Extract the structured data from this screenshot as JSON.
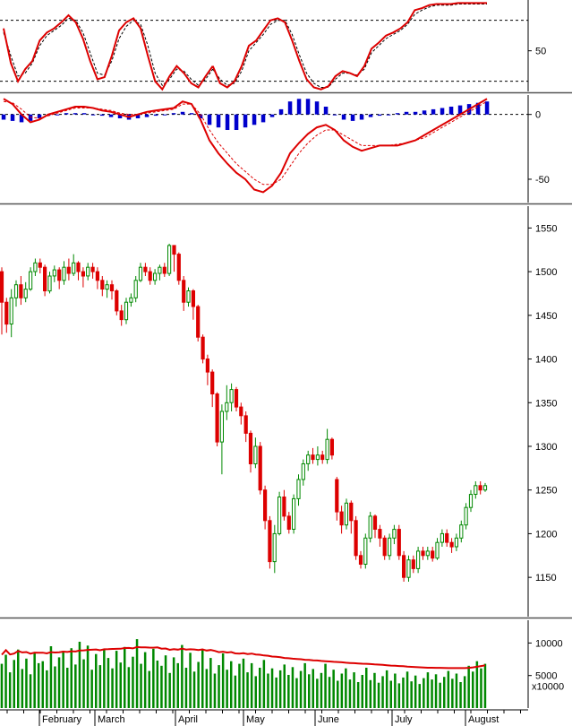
{
  "chart_data": [
    {
      "type": "line",
      "panel": "stochastic",
      "y_ticks": [
        50
      ],
      "ylim": [
        10,
        100
      ],
      "reference_lines": [
        80,
        20
      ],
      "x": [
        0,
        5,
        10,
        15,
        20,
        25,
        30,
        35,
        40,
        45,
        50,
        55,
        60,
        65,
        70,
        75,
        80,
        85,
        90,
        95,
        100,
        105,
        110,
        115,
        120,
        125,
        130,
        135,
        140,
        145
      ],
      "series": [
        {
          "color": "#dd0000",
          "values": [
            72,
            38,
            20,
            32,
            40,
            60,
            68,
            72,
            78,
            85,
            78,
            62,
            40,
            22,
            24,
            45,
            70,
            78,
            82,
            72,
            45,
            20,
            12,
            25,
            35,
            28,
            18,
            14,
            25,
            35
          ]
        },
        {
          "color": "#000000",
          "values": [
            68,
            45,
            25,
            28,
            38,
            55,
            65,
            70,
            75,
            82,
            80,
            68,
            48,
            28,
            26,
            40,
            62,
            74,
            80,
            76,
            55,
            28,
            16,
            22,
            32,
            30,
            22,
            16,
            22,
            32
          ]
        }
      ],
      "series_b_x": [
        145,
        150,
        155,
        160,
        165,
        170,
        175,
        180,
        185,
        190,
        195,
        200,
        205,
        210,
        215,
        220,
        225,
        230,
        235,
        240,
        245,
        250,
        255,
        260,
        265,
        270,
        275,
        280,
        285,
        290,
        295,
        300,
        305,
        310,
        315,
        320,
        325,
        330,
        335
      ],
      "series_b": [
        {
          "color": "#dd0000",
          "values": [
            35,
            18,
            14,
            20,
            35,
            55,
            60,
            70,
            80,
            82,
            78,
            60,
            40,
            22,
            14,
            12,
            15,
            25,
            30,
            28,
            25,
            35,
            52,
            58,
            65,
            68,
            72,
            78,
            90,
            92,
            95,
            96,
            96,
            96,
            97,
            97,
            97,
            97,
            97
          ]
        },
        {
          "color": "#000000",
          "values": [
            32,
            22,
            16,
            18,
            30,
            50,
            58,
            66,
            76,
            80,
            80,
            66,
            46,
            28,
            18,
            14,
            14,
            22,
            28,
            28,
            26,
            32,
            48,
            55,
            62,
            66,
            70,
            76,
            86,
            90,
            93,
            95,
            95,
            95,
            96,
            96,
            96,
            96,
            96
          ]
        }
      ]
    },
    {
      "type": "line",
      "panel": "macd",
      "y_ticks": [
        0,
        -50
      ],
      "ylim": [
        -68,
        15
      ],
      "lines": [
        {
          "color": "#dd0000",
          "values": [
            12,
            8,
            0,
            -6,
            -4,
            0,
            2,
            4,
            6,
            6,
            5,
            3,
            2,
            0,
            -2,
            0,
            2,
            3,
            4,
            5,
            10,
            8,
            -4,
            -20,
            -30,
            -38,
            -45,
            -50,
            -58,
            -60,
            -55,
            -45,
            -30,
            -22,
            -15,
            -10,
            -8,
            -12,
            -20,
            -25,
            -28,
            -26,
            -24,
            -24,
            -24,
            -22,
            -20,
            -16,
            -12,
            -8,
            -4,
            0,
            4,
            8,
            12
          ]
        },
        {
          "color": "#dd0000",
          "dashed": true,
          "values": [
            10,
            9,
            4,
            -2,
            -3,
            -1,
            1,
            3,
            5,
            5,
            5,
            4,
            3,
            1,
            0,
            0,
            1,
            2,
            3,
            4,
            8,
            8,
            0,
            -12,
            -22,
            -30,
            -38,
            -44,
            -50,
            -54,
            -54,
            -50,
            -40,
            -30,
            -22,
            -16,
            -12,
            -12,
            -16,
            -20,
            -24,
            -24,
            -24,
            -24,
            -23,
            -22,
            -20,
            -18,
            -14,
            -10,
            -6,
            -2,
            2,
            6,
            10
          ]
        }
      ],
      "histogram": [
        -4,
        -5,
        -6,
        -5,
        -3,
        -1,
        0,
        1,
        1,
        1,
        0,
        -1,
        -2,
        -3,
        -4,
        -3,
        -2,
        -1,
        0,
        1,
        2,
        1,
        -3,
        -8,
        -10,
        -12,
        -12,
        -10,
        -8,
        -6,
        -2,
        4,
        10,
        12,
        12,
        10,
        6,
        0,
        -4,
        -5,
        -4,
        -2,
        -1,
        0,
        1,
        2,
        2,
        3,
        4,
        5,
        6,
        7,
        8,
        9,
        10
      ],
      "hist_color": "#0000cc"
    },
    {
      "type": "candlestick",
      "panel": "price",
      "y_ticks": [
        1550,
        1500,
        1450,
        1400,
        1350,
        1300,
        1250,
        1200,
        1150
      ],
      "ylim": [
        1105,
        1575
      ],
      "up_color": "#008800",
      "down_color": "#dd0000",
      "candles": [
        {
          "o": 1500,
          "c": 1465,
          "h": 1505,
          "l": 1428
        },
        {
          "o": 1465,
          "c": 1440,
          "h": 1470,
          "l": 1430
        },
        {
          "o": 1440,
          "c": 1470,
          "h": 1480,
          "l": 1425
        },
        {
          "o": 1470,
          "c": 1485,
          "h": 1490,
          "l": 1460
        },
        {
          "o": 1485,
          "c": 1470,
          "h": 1495,
          "l": 1462
        },
        {
          "o": 1470,
          "c": 1480,
          "h": 1488,
          "l": 1465
        },
        {
          "o": 1480,
          "c": 1500,
          "h": 1505,
          "l": 1478
        },
        {
          "o": 1500,
          "c": 1510,
          "h": 1515,
          "l": 1495
        },
        {
          "o": 1510,
          "c": 1505,
          "h": 1515,
          "l": 1498
        },
        {
          "o": 1505,
          "c": 1478,
          "h": 1508,
          "l": 1472
        },
        {
          "o": 1478,
          "c": 1495,
          "h": 1500,
          "l": 1475
        },
        {
          "o": 1495,
          "c": 1502,
          "h": 1507,
          "l": 1488
        },
        {
          "o": 1502,
          "c": 1490,
          "h": 1505,
          "l": 1480
        },
        {
          "o": 1490,
          "c": 1505,
          "h": 1512,
          "l": 1485
        },
        {
          "o": 1505,
          "c": 1498,
          "h": 1515,
          "l": 1490
        },
        {
          "o": 1498,
          "c": 1510,
          "h": 1520,
          "l": 1495
        },
        {
          "o": 1510,
          "c": 1500,
          "h": 1512,
          "l": 1490
        },
        {
          "o": 1500,
          "c": 1495,
          "h": 1505,
          "l": 1482
        },
        {
          "o": 1495,
          "c": 1505,
          "h": 1510,
          "l": 1490
        },
        {
          "o": 1505,
          "c": 1500,
          "h": 1510,
          "l": 1492
        },
        {
          "o": 1500,
          "c": 1490,
          "h": 1505,
          "l": 1480
        },
        {
          "o": 1490,
          "c": 1480,
          "h": 1495,
          "l": 1472
        },
        {
          "o": 1480,
          "c": 1485,
          "h": 1490,
          "l": 1470
        },
        {
          "o": 1485,
          "c": 1478,
          "h": 1490,
          "l": 1468
        },
        {
          "o": 1478,
          "c": 1455,
          "h": 1480,
          "l": 1450
        },
        {
          "o": 1455,
          "c": 1445,
          "h": 1462,
          "l": 1438
        },
        {
          "o": 1445,
          "c": 1465,
          "h": 1470,
          "l": 1440
        },
        {
          "o": 1465,
          "c": 1470,
          "h": 1475,
          "l": 1460
        },
        {
          "o": 1470,
          "c": 1490,
          "h": 1495,
          "l": 1465
        },
        {
          "o": 1490,
          "c": 1505,
          "h": 1510,
          "l": 1488
        },
        {
          "o": 1505,
          "c": 1500,
          "h": 1510,
          "l": 1495
        },
        {
          "o": 1500,
          "c": 1490,
          "h": 1505,
          "l": 1485
        },
        {
          "o": 1490,
          "c": 1498,
          "h": 1503,
          "l": 1485
        },
        {
          "o": 1498,
          "c": 1505,
          "h": 1508,
          "l": 1490
        },
        {
          "o": 1505,
          "c": 1498,
          "h": 1510,
          "l": 1494
        },
        {
          "o": 1498,
          "c": 1530,
          "h": 1532,
          "l": 1495
        },
        {
          "o": 1530,
          "c": 1520,
          "h": 1530,
          "l": 1500
        },
        {
          "o": 1520,
          "c": 1490,
          "h": 1522,
          "l": 1485
        },
        {
          "o": 1490,
          "c": 1465,
          "h": 1495,
          "l": 1455
        },
        {
          "o": 1465,
          "c": 1478,
          "h": 1482,
          "l": 1460
        },
        {
          "o": 1478,
          "c": 1460,
          "h": 1480,
          "l": 1445
        },
        {
          "o": 1460,
          "c": 1425,
          "h": 1462,
          "l": 1420
        },
        {
          "o": 1425,
          "c": 1400,
          "h": 1428,
          "l": 1395
        },
        {
          "o": 1400,
          "c": 1385,
          "h": 1405,
          "l": 1370
        },
        {
          "o": 1385,
          "c": 1360,
          "h": 1388,
          "l": 1345
        },
        {
          "o": 1360,
          "c": 1305,
          "h": 1362,
          "l": 1300
        },
        {
          "o": 1305,
          "c": 1340,
          "h": 1348,
          "l": 1268
        },
        {
          "o": 1340,
          "c": 1350,
          "h": 1370,
          "l": 1330
        },
        {
          "o": 1350,
          "c": 1365,
          "h": 1372,
          "l": 1340
        },
        {
          "o": 1365,
          "c": 1345,
          "h": 1368,
          "l": 1340
        },
        {
          "o": 1345,
          "c": 1335,
          "h": 1350,
          "l": 1325
        },
        {
          "o": 1335,
          "c": 1315,
          "h": 1340,
          "l": 1305
        },
        {
          "o": 1315,
          "c": 1280,
          "h": 1318,
          "l": 1270
        },
        {
          "o": 1280,
          "c": 1300,
          "h": 1310,
          "l": 1275
        },
        {
          "o": 1300,
          "c": 1250,
          "h": 1305,
          "l": 1245
        },
        {
          "o": 1250,
          "c": 1215,
          "h": 1255,
          "l": 1205
        },
        {
          "o": 1215,
          "c": 1168,
          "h": 1220,
          "l": 1160
        },
        {
          "o": 1168,
          "c": 1200,
          "h": 1210,
          "l": 1155
        },
        {
          "o": 1200,
          "c": 1242,
          "h": 1248,
          "l": 1198
        },
        {
          "o": 1242,
          "c": 1220,
          "h": 1250,
          "l": 1215
        },
        {
          "o": 1220,
          "c": 1205,
          "h": 1225,
          "l": 1200
        },
        {
          "o": 1205,
          "c": 1240,
          "h": 1245,
          "l": 1200
        },
        {
          "o": 1240,
          "c": 1262,
          "h": 1268,
          "l": 1232
        },
        {
          "o": 1262,
          "c": 1280,
          "h": 1285,
          "l": 1255
        },
        {
          "o": 1280,
          "c": 1290,
          "h": 1295,
          "l": 1272
        },
        {
          "o": 1290,
          "c": 1285,
          "h": 1298,
          "l": 1280
        },
        {
          "o": 1285,
          "c": 1290,
          "h": 1300,
          "l": 1278
        },
        {
          "o": 1290,
          "c": 1285,
          "h": 1295,
          "l": 1280
        },
        {
          "o": 1285,
          "c": 1308,
          "h": 1320,
          "l": 1280
        },
        {
          "o": 1308,
          "c": 1290,
          "h": 1310,
          "l": 1285
        },
        {
          "o": 1262,
          "c": 1225,
          "h": 1265,
          "l": 1215
        },
        {
          "o": 1225,
          "c": 1210,
          "h": 1232,
          "l": 1200
        },
        {
          "o": 1210,
          "c": 1235,
          "h": 1240,
          "l": 1205
        },
        {
          "o": 1235,
          "c": 1215,
          "h": 1238,
          "l": 1200
        },
        {
          "o": 1215,
          "c": 1175,
          "h": 1220,
          "l": 1170
        },
        {
          "o": 1175,
          "c": 1165,
          "h": 1180,
          "l": 1160
        },
        {
          "o": 1165,
          "c": 1195,
          "h": 1200,
          "l": 1160
        },
        {
          "o": 1195,
          "c": 1220,
          "h": 1225,
          "l": 1190
        },
        {
          "o": 1220,
          "c": 1205,
          "h": 1222,
          "l": 1195
        },
        {
          "o": 1205,
          "c": 1195,
          "h": 1210,
          "l": 1185
        },
        {
          "o": 1195,
          "c": 1175,
          "h": 1198,
          "l": 1170
        },
        {
          "o": 1175,
          "c": 1195,
          "h": 1200,
          "l": 1170
        },
        {
          "o": 1195,
          "c": 1205,
          "h": 1210,
          "l": 1188
        },
        {
          "o": 1205,
          "c": 1175,
          "h": 1210,
          "l": 1170
        },
        {
          "o": 1175,
          "c": 1150,
          "h": 1180,
          "l": 1145
        },
        {
          "o": 1150,
          "c": 1170,
          "h": 1175,
          "l": 1145
        },
        {
          "o": 1170,
          "c": 1160,
          "h": 1175,
          "l": 1155
        },
        {
          "o": 1160,
          "c": 1180,
          "h": 1185,
          "l": 1155
        },
        {
          "o": 1180,
          "c": 1175,
          "h": 1185,
          "l": 1170
        },
        {
          "o": 1175,
          "c": 1180,
          "h": 1185,
          "l": 1170
        },
        {
          "o": 1180,
          "c": 1172,
          "h": 1185,
          "l": 1168
        },
        {
          "o": 1172,
          "c": 1190,
          "h": 1195,
          "l": 1170
        },
        {
          "o": 1190,
          "c": 1200,
          "h": 1205,
          "l": 1185
        },
        {
          "o": 1200,
          "c": 1190,
          "h": 1205,
          "l": 1185
        },
        {
          "o": 1190,
          "c": 1185,
          "h": 1195,
          "l": 1178
        },
        {
          "o": 1185,
          "c": 1195,
          "h": 1200,
          "l": 1180
        },
        {
          "o": 1195,
          "c": 1210,
          "h": 1215,
          "l": 1190
        },
        {
          "o": 1210,
          "c": 1230,
          "h": 1235,
          "l": 1205
        },
        {
          "o": 1230,
          "c": 1245,
          "h": 1250,
          "l": 1225
        },
        {
          "o": 1245,
          "c": 1255,
          "h": 1260,
          "l": 1240
        },
        {
          "o": 1255,
          "c": 1250,
          "h": 1260,
          "l": 1245
        },
        {
          "o": 1250,
          "c": 1255,
          "h": 1258,
          "l": 1248
        }
      ]
    },
    {
      "type": "bar",
      "panel": "volume",
      "y_ticks": [
        10000,
        5000
      ],
      "unit_label": "x10000",
      "ylim": [
        0,
        13500
      ],
      "bar_color": "#008800",
      "ma_color": "#dd0000",
      "values": [
        6800,
        8200,
        5500,
        7400,
        9000,
        6000,
        7600,
        5200,
        8400,
        6900,
        7200,
        5800,
        9500,
        6400,
        7800,
        8800,
        6200,
        9200,
        6700,
        10200,
        7500,
        9600,
        5900,
        8300,
        6600,
        9000,
        7700,
        6100,
        8800,
        7000,
        9400,
        6300,
        7900,
        10600,
        6800,
        8600,
        5700,
        9100,
        7300,
        6500,
        8100,
        5400,
        7800,
        6900,
        9700,
        6200,
        8500,
        5600,
        7100,
        8900,
        6000,
        7700,
        5300,
        6600,
        8400,
        5900,
        7200,
        5000,
        6800,
        7600,
        5500,
        6900,
        4900,
        6200,
        7400,
        5300,
        6100,
        4700,
        5800,
        6700,
        5100,
        6300,
        4600,
        5700,
        6900,
        5200,
        6000,
        4500,
        5400,
        6800,
        4800,
        5900,
        4200,
        5300,
        6100,
        4400,
        5500,
        4000,
        5100,
        6200,
        4300,
        5400,
        3900,
        4900,
        5800,
        4200,
        5300,
        3800,
        4700,
        5600,
        4100,
        5000,
        3700,
        4600,
        5500,
        4400,
        5200,
        3900,
        4800,
        5700,
        4500,
        5300,
        4000,
        4900,
        6500,
        5600,
        7200,
        6100,
        6800
      ]
    }
  ],
  "x_axis": {
    "months": [
      "February",
      "March",
      "April",
      "May",
      "June",
      "July",
      "August"
    ]
  }
}
